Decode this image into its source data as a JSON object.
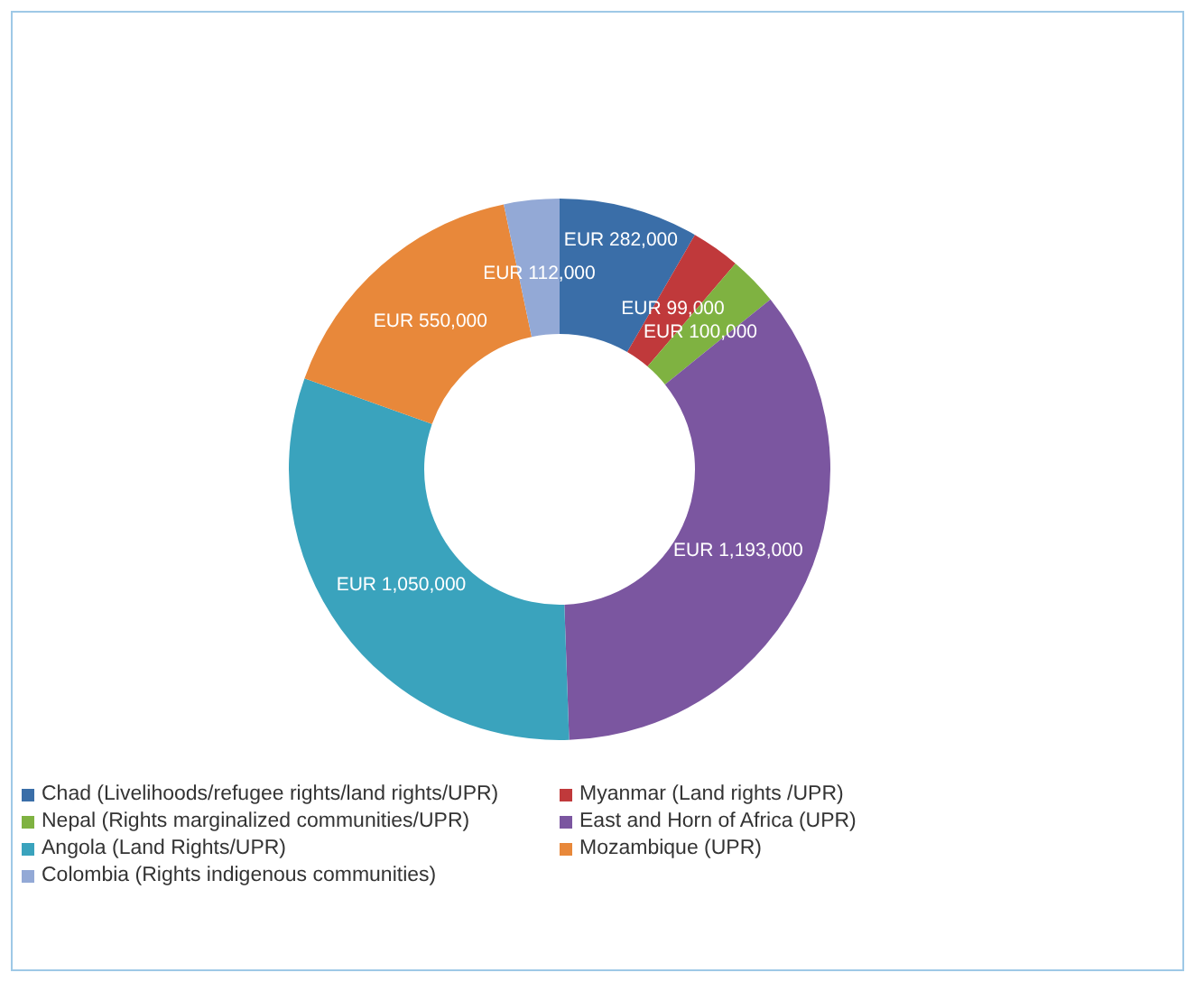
{
  "chart_data": {
    "type": "donut",
    "categories": [
      "Chad (Livelihoods/refugee rights/land rights/UPR)",
      "Myanmar (Land rights /UPR)",
      "Nepal (Rights marginalized communities/UPR)",
      "East and Horn of Africa (UPR)",
      "Angola (Land Rights/UPR)",
      "Mozambique (UPR)",
      "Colombia (Rights indigenous communities)"
    ],
    "values": [
      282000,
      99000,
      100000,
      1193000,
      1050000,
      550000,
      112000
    ],
    "value_labels": [
      "EUR 282,000",
      "EUR 99,000",
      "EUR 100,000",
      "EUR 1,193,000",
      "EUR 1,050,000",
      "EUR 550,000",
      "EUR 112,000"
    ],
    "colors": [
      "#3a6ea8",
      "#c0393b",
      "#7fb241",
      "#7b56a0",
      "#3aa3bd",
      "#e8883a",
      "#93a9d6"
    ],
    "legend": "bottom"
  }
}
